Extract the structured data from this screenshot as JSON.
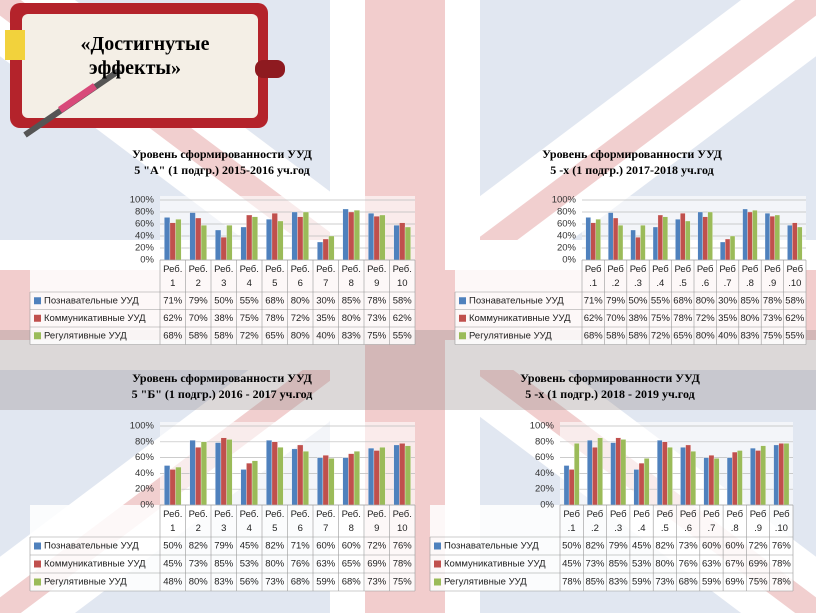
{
  "heading": "«Достигнутые эффекты»",
  "chart_data": [
    {
      "type": "bar",
      "title": "Уровень сформированности УУД",
      "subtitle": "5 \"А\" (1 подгр.) 2015-2016 уч.год",
      "categories": [
        "Реб. 1",
        "Реб. 2",
        "Реб. 3",
        "Реб. 4",
        "Реб. 5",
        "Реб. 6",
        "Реб. 7",
        "Реб. 8",
        "Реб. 9",
        "Реб. 10"
      ],
      "ylim": [
        0,
        100
      ],
      "yticks": [
        {
          "value": 0,
          "label": "0%"
        },
        {
          "value": 20,
          "label": "20%"
        },
        {
          "value": 40,
          "label": "40%"
        },
        {
          "value": 60,
          "label": "60%"
        },
        {
          "value": 80,
          "label": "80%"
        },
        {
          "value": 100,
          "label": "100%"
        }
      ],
      "grid": true,
      "series": [
        {
          "name": "Познавательные УУД",
          "color": "#4f81bd",
          "values": [
            71,
            79,
            50,
            55,
            68,
            80,
            30,
            85,
            78,
            58
          ],
          "value_labels": [
            "71%",
            "79%",
            "50%",
            "55%",
            "68%",
            "80%",
            "30%",
            "85%",
            "78%",
            "58%"
          ]
        },
        {
          "name": "Коммуникативные УУД",
          "color": "#c0504d",
          "values": [
            62,
            70,
            38,
            75,
            78,
            72,
            35,
            80,
            73,
            62
          ],
          "value_labels": [
            "62%",
            "70%",
            "38%",
            "75%",
            "78%",
            "72%",
            "35%",
            "80%",
            "73%",
            "62%"
          ]
        },
        {
          "name": "Регулятивные УУД",
          "color": "#9bbb59",
          "values": [
            68,
            58,
            58,
            72,
            65,
            80,
            40,
            83,
            75,
            55
          ],
          "value_labels": [
            "68%",
            "58%",
            "58%",
            "72%",
            "65%",
            "80%",
            "40%",
            "83%",
            "75%",
            "55%"
          ]
        }
      ]
    },
    {
      "type": "bar",
      "title": "Уровень сформированности УУД",
      "subtitle": "5 -х (1 подгр.) 2017-2018 уч.год",
      "categories": [
        "Реб .1",
        "Реб .2",
        "Реб .3",
        "Реб .4",
        "Реб .5",
        "Реб .6",
        "Реб .7",
        "Реб .8",
        "Реб .9",
        "Реб .10"
      ],
      "ylim": [
        0,
        100
      ],
      "yticks": [
        {
          "value": 0,
          "label": "0%"
        },
        {
          "value": 20,
          "label": "20%"
        },
        {
          "value": 40,
          "label": "40%"
        },
        {
          "value": 60,
          "label": "60%"
        },
        {
          "value": 80,
          "label": "80%"
        },
        {
          "value": 100,
          "label": "100%"
        }
      ],
      "grid": true,
      "series": [
        {
          "name": "Познавательные УУД",
          "color": "#4f81bd",
          "values": [
            71,
            79,
            50,
            55,
            68,
            80,
            30,
            85,
            78,
            58
          ],
          "value_labels": [
            "71%",
            "79%",
            "50%",
            "55%",
            "68%",
            "80%",
            "30%",
            "85%",
            "78%",
            "58%"
          ]
        },
        {
          "name": "Коммуникативные УУД",
          "color": "#c0504d",
          "values": [
            62,
            70,
            38,
            75,
            78,
            72,
            35,
            80,
            73,
            62
          ],
          "value_labels": [
            "62%",
            "70%",
            "38%",
            "75%",
            "78%",
            "72%",
            "35%",
            "80%",
            "73%",
            "62%"
          ]
        },
        {
          "name": "Регулятивные УУД",
          "color": "#9bbb59",
          "values": [
            68,
            58,
            58,
            72,
            65,
            80,
            40,
            83,
            75,
            55
          ],
          "value_labels": [
            "68%",
            "58%",
            "58%",
            "72%",
            "65%",
            "80%",
            "40%",
            "83%",
            "75%",
            "55%"
          ]
        }
      ]
    },
    {
      "type": "bar",
      "title": "Уровень сформированности УУД",
      "subtitle": "5 \"Б\" (1 подгр.) 2016 - 2017 уч.год",
      "categories": [
        "Реб. 1",
        "Реб. 2",
        "Реб. 3",
        "Реб. 4",
        "Реб. 5",
        "Реб. 6",
        "Реб. 7",
        "Реб. 8",
        "Реб. 9",
        "Реб. 10"
      ],
      "ylim": [
        0,
        100
      ],
      "yticks": [
        {
          "value": 0,
          "label": "0%"
        },
        {
          "value": 20,
          "label": "20%"
        },
        {
          "value": 40,
          "label": "40%"
        },
        {
          "value": 60,
          "label": "60%"
        },
        {
          "value": 80,
          "label": "80%"
        },
        {
          "value": 100,
          "label": "100%"
        }
      ],
      "grid": true,
      "series": [
        {
          "name": "Познавательные УУД",
          "color": "#4f81bd",
          "values": [
            50,
            82,
            79,
            45,
            82,
            71,
            60,
            60,
            72,
            76
          ],
          "value_labels": [
            "50%",
            "82%",
            "79%",
            "45%",
            "82%",
            "71%",
            "60%",
            "60%",
            "72%",
            "76%"
          ]
        },
        {
          "name": "Коммуникативные УУД",
          "color": "#c0504d",
          "values": [
            45,
            73,
            85,
            53,
            80,
            76,
            63,
            65,
            69,
            78
          ],
          "value_labels": [
            "45%",
            "73%",
            "85%",
            "53%",
            "80%",
            "76%",
            "63%",
            "65%",
            "69%",
            "78%"
          ]
        },
        {
          "name": "Регулятивные УУД",
          "color": "#9bbb59",
          "values": [
            48,
            80,
            83,
            56,
            73,
            68,
            59,
            68,
            73,
            75
          ],
          "value_labels": [
            "48%",
            "80%",
            "83%",
            "56%",
            "73%",
            "68%",
            "59%",
            "68%",
            "73%",
            "75%"
          ]
        }
      ]
    },
    {
      "type": "bar",
      "title": "Уровень сформированности УУД",
      "subtitle": "5 -х (1 подгр.) 2018 - 2019 уч.год",
      "categories": [
        "Реб .1",
        "Реб .2",
        "Реб .3",
        "Реб .4",
        "Реб .5",
        "Реб .6",
        "Реб .7",
        "Реб .8",
        "Реб .9",
        "Реб .10"
      ],
      "ylim": [
        0,
        100
      ],
      "yticks": [
        {
          "value": 0,
          "label": "0%"
        },
        {
          "value": 20,
          "label": "20%"
        },
        {
          "value": 40,
          "label": "40%"
        },
        {
          "value": 60,
          "label": "60%"
        },
        {
          "value": 80,
          "label": "80%"
        },
        {
          "value": 100,
          "label": "100%"
        }
      ],
      "grid": true,
      "series": [
        {
          "name": "Познавательные УУД",
          "color": "#4f81bd",
          "values": [
            50,
            82,
            79,
            45,
            82,
            73,
            60,
            60,
            72,
            76
          ],
          "value_labels": [
            "50%",
            "82%",
            "79%",
            "45%",
            "82%",
            "73%",
            "60%",
            "60%",
            "72%",
            "76%"
          ]
        },
        {
          "name": "Коммуникативные УУД",
          "color": "#c0504d",
          "values": [
            45,
            73,
            85,
            53,
            80,
            76,
            63,
            67,
            69,
            78
          ],
          "value_labels": [
            "45%",
            "73%",
            "85%",
            "53%",
            "80%",
            "76%",
            "63%",
            "67%",
            "69%",
            "78%"
          ]
        },
        {
          "name": "Регулятивные УУД",
          "color": "#9bbb59",
          "values": [
            78,
            85,
            83,
            59,
            73,
            68,
            59,
            69,
            75,
            78
          ],
          "value_labels": [
            "78%",
            "85%",
            "83%",
            "59%",
            "73%",
            "68%",
            "59%",
            "69%",
            "75%",
            "78%"
          ]
        }
      ]
    }
  ]
}
